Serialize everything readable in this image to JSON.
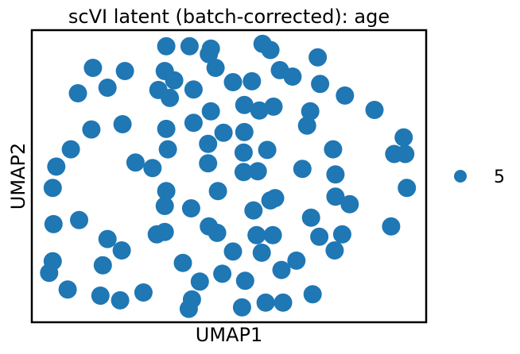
{
  "chart_data": {
    "type": "scatter",
    "title": "scVI latent (batch-corrected): age",
    "xlabel": "UMAP1",
    "ylabel": "UMAP2",
    "xlim": [
      0,
      100
    ],
    "ylim": [
      0,
      100
    ],
    "grid": false,
    "ticks": false,
    "legend": {
      "placement": "right",
      "entries": [
        "5"
      ]
    },
    "series": [
      {
        "name": "5",
        "color": "#1f77b4",
        "points": [
          [
            34.1,
            94.5
          ],
          [
            40.0,
            94.5
          ],
          [
            45.4,
            93.7
          ],
          [
            58.5,
            95.3
          ],
          [
            60.5,
            93.2
          ],
          [
            44.9,
            91.8
          ],
          [
            72.5,
            90.7
          ],
          [
            15.5,
            87.1
          ],
          [
            23.6,
            86.0
          ],
          [
            33.7,
            86.0
          ],
          [
            46.6,
            87.1
          ],
          [
            62.9,
            86.3
          ],
          [
            66.1,
            84.1
          ],
          [
            36.1,
            82.8
          ],
          [
            51.0,
            82.2
          ],
          [
            55.8,
            82.5
          ],
          [
            73.1,
            81.6
          ],
          [
            19.2,
            80.3
          ],
          [
            32.1,
            79.5
          ],
          [
            41.0,
            79.7
          ],
          [
            11.7,
            78.4
          ],
          [
            35.0,
            76.8
          ],
          [
            79.4,
            77.6
          ],
          [
            53.9,
            74.4
          ],
          [
            57.7,
            72.5
          ],
          [
            61.3,
            73.8
          ],
          [
            70.6,
            72.2
          ],
          [
            86.9,
            72.7
          ],
          [
            45.4,
            72.2
          ],
          [
            23.0,
            67.8
          ],
          [
            41.0,
            68.3
          ],
          [
            34.1,
            66.2
          ],
          [
            15.1,
            66.0
          ],
          [
            48.6,
            64.9
          ],
          [
            53.9,
            65.1
          ],
          [
            69.8,
            67.3
          ],
          [
            94.3,
            63.3
          ],
          [
            44.7,
            61.1
          ],
          [
            9.9,
            59.2
          ],
          [
            34.5,
            59.2
          ],
          [
            59.7,
            59.0
          ],
          [
            53.7,
            58.1
          ],
          [
            76.4,
            59.2
          ],
          [
            91.9,
            57.6
          ],
          [
            94.7,
            57.6
          ],
          [
            44.7,
            54.4
          ],
          [
            26.3,
            54.7
          ],
          [
            30.6,
            52.8
          ],
          [
            77.0,
            50.6
          ],
          [
            53.7,
            51.4
          ],
          [
            57.3,
            51.7
          ],
          [
            6.2,
            53.3
          ],
          [
            68.6,
            52.5
          ],
          [
            5.3,
            46.0
          ],
          [
            34.1,
            44.9
          ],
          [
            47.2,
            44.9
          ],
          [
            95.1,
            46.0
          ],
          [
            77.0,
            43.0
          ],
          [
            60.5,
            41.7
          ],
          [
            61.7,
            42.5
          ],
          [
            33.7,
            39.8
          ],
          [
            80.6,
            40.4
          ],
          [
            40.4,
            39.0
          ],
          [
            56.2,
            38.3
          ],
          [
            5.5,
            33.6
          ],
          [
            12.0,
            35.0
          ],
          [
            70.8,
            35.8
          ],
          [
            91.1,
            32.8
          ],
          [
            44.9,
            32.8
          ],
          [
            47.0,
            30.6
          ],
          [
            19.2,
            28.5
          ],
          [
            31.7,
            30.1
          ],
          [
            33.7,
            30.9
          ],
          [
            57.0,
            29.8
          ],
          [
            61.1,
            29.8
          ],
          [
            72.9,
            29.3
          ],
          [
            78.7,
            30.1
          ],
          [
            22.8,
            24.6
          ],
          [
            51.0,
            24.2
          ],
          [
            58.3,
            23.8
          ],
          [
            76.8,
            24.6
          ],
          [
            5.3,
            20.9
          ],
          [
            18.0,
            19.5
          ],
          [
            38.3,
            20.3
          ],
          [
            48.3,
            16.6
          ],
          [
            63.3,
            17.9
          ],
          [
            67.1,
            21.1
          ],
          [
            4.4,
            16.9
          ],
          [
            42.6,
            13.9
          ],
          [
            54.1,
            14.2
          ],
          [
            9.1,
            11.2
          ],
          [
            17.4,
            9.1
          ],
          [
            28.3,
            10.2
          ],
          [
            40.6,
            7.8
          ],
          [
            39.8,
            4.6
          ],
          [
            22.4,
            7.5
          ],
          [
            53.3,
            5.1
          ],
          [
            59.3,
            6.7
          ],
          [
            63.7,
            6.7
          ],
          [
            71.2,
            9.6
          ]
        ]
      }
    ]
  }
}
